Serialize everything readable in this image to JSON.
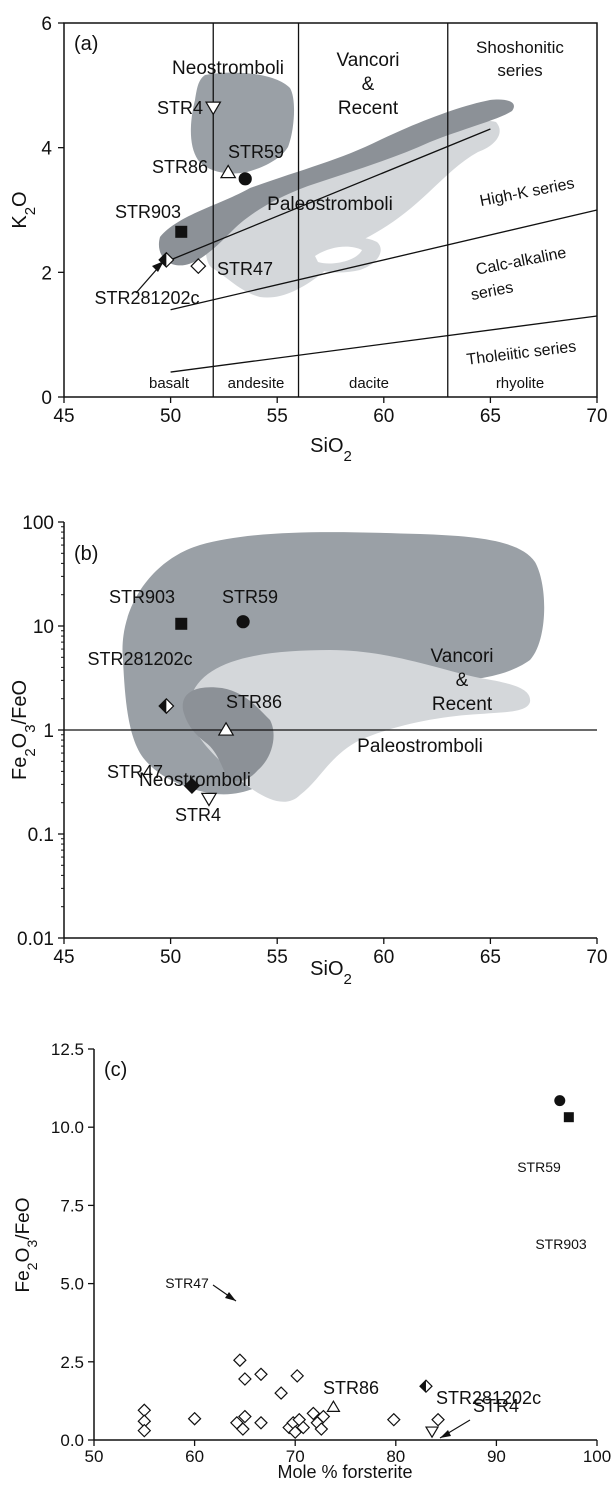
{
  "chart_data": [
    {
      "panel": "(a)",
      "type": "scatter",
      "xlabel": "SiO2",
      "ylabel": "K2O",
      "xlim": [
        45,
        70
      ],
      "ylim": [
        0,
        6
      ],
      "x_ticks": [
        45,
        50,
        55,
        60,
        65,
        70
      ],
      "y_ticks": [
        0,
        2,
        4,
        6
      ],
      "x_tick_labels": [
        "45",
        "50",
        "55",
        "60",
        "65",
        "70"
      ],
      "y_tick_labels": [
        "0",
        "2",
        "4",
        "6"
      ],
      "points": [
        {
          "label": "STR4",
          "x": 52.0,
          "y": 4.65,
          "marker": "triangle-down-open"
        },
        {
          "label": "STR86",
          "x": 52.7,
          "y": 3.6,
          "marker": "triangle-up-open"
        },
        {
          "label": "STR59",
          "x": 53.5,
          "y": 3.5,
          "marker": "circle-filled"
        },
        {
          "label": "STR903",
          "x": 50.5,
          "y": 2.65,
          "marker": "square-filled"
        },
        {
          "label": "STR281202c",
          "x": 49.8,
          "y": 2.2,
          "marker": "diamond-half"
        },
        {
          "label": "STR47",
          "x": 51.3,
          "y": 2.1,
          "marker": "diamond-open"
        }
      ],
      "fields": [
        {
          "name": "Neostromboli",
          "color": "#9aa0a6"
        },
        {
          "name": "Vancori & Recent",
          "color": "#8c9197"
        },
        {
          "name": "Paleostromboli",
          "color": "#d4d7da"
        }
      ],
      "field_labels": [
        "Neostromboli",
        "Vancori",
        "&",
        "Recent",
        "Paleostromboli"
      ],
      "series_labels": [
        "Shoshonitic",
        "series",
        "High-K series",
        "Calc-alkaline",
        "series",
        "Tholeiitic series"
      ],
      "rock_labels": [
        "basalt",
        "andesite",
        "dacite",
        "rhyolite"
      ],
      "boundary_x": [
        52,
        56,
        63
      ],
      "series_boundaries": [
        {
          "from": [
            50,
            0.4
          ],
          "to": [
            70,
            1.3
          ]
        },
        {
          "from": [
            50,
            1.4
          ],
          "to": [
            70,
            3.0
          ]
        },
        {
          "from": [
            50,
            2.2
          ],
          "to": [
            65,
            4.3
          ]
        }
      ]
    },
    {
      "panel": "(b)",
      "type": "scatter",
      "xlabel": "SiO2",
      "ylabel": "Fe2O3/FeO",
      "yscale": "log",
      "xlim": [
        45,
        70
      ],
      "ylim": [
        0.01,
        100
      ],
      "x_ticks": [
        45,
        50,
        55,
        60,
        65,
        70
      ],
      "y_ticks": [
        0.01,
        0.1,
        1,
        10,
        100
      ],
      "x_tick_labels": [
        "45",
        "50",
        "55",
        "60",
        "65",
        "70"
      ],
      "y_tick_labels": [
        "0.01",
        "0.1",
        "1",
        "10",
        "100"
      ],
      "reference_line_y": 1,
      "points": [
        {
          "label": "STR903",
          "x": 50.5,
          "y": 10.5,
          "marker": "square-filled"
        },
        {
          "label": "STR59",
          "x": 53.4,
          "y": 11,
          "marker": "circle-filled"
        },
        {
          "label": "STR281202c",
          "x": 49.8,
          "y": 1.7,
          "marker": "diamond-half"
        },
        {
          "label": "STR86",
          "x": 52.6,
          "y": 1.0,
          "marker": "triangle-up-open"
        },
        {
          "label": "STR47",
          "x": 51.0,
          "y": 0.29,
          "marker": "diamond-filled"
        },
        {
          "label": "STR4",
          "x": 51.8,
          "y": 0.22,
          "marker": "triangle-down-open"
        }
      ],
      "field_labels": [
        "Vancori",
        "&",
        "Recent",
        "Paleostromboli",
        "Neostromboli"
      ]
    },
    {
      "panel": "(c)",
      "type": "scatter",
      "xlabel": "Mole % forsterite",
      "ylabel": "Fe2O3/FeO",
      "xlim": [
        50,
        100
      ],
      "ylim": [
        0,
        12.5
      ],
      "x_ticks": [
        50,
        60,
        70,
        80,
        90,
        100
      ],
      "y_ticks": [
        0,
        2.5,
        5.0,
        7.5,
        10.0,
        12.5
      ],
      "x_tick_labels": [
        "50",
        "60",
        "70",
        "80",
        "90",
        "100"
      ],
      "y_tick_labels": [
        "0.0",
        "2.5",
        "5.0",
        "7.5",
        "10.0",
        "12.5"
      ],
      "labeled_points": [
        {
          "label": "STR59",
          "x": 96.3,
          "y": 10.85,
          "marker": "circle-filled"
        },
        {
          "label": "STR903",
          "x": 97.2,
          "y": 10.32,
          "marker": "square-filled"
        },
        {
          "label": "STR47",
          "x": 64.5,
          "y": 2.55,
          "marker": "diamond-open"
        },
        {
          "label": "STR86",
          "x": 73.8,
          "y": 1.05,
          "marker": "triangle-up-open"
        },
        {
          "label": "STR281202c",
          "x": 83.0,
          "y": 1.72,
          "marker": "diamond-half"
        },
        {
          "label": "STR4",
          "x": 83.6,
          "y": 0.28,
          "marker": "triangle-down-open"
        }
      ],
      "other_points": [
        [
          55,
          0.95
        ],
        [
          55,
          0.6
        ],
        [
          55,
          0.3
        ],
        [
          60,
          0.68
        ],
        [
          64.2,
          0.55
        ],
        [
          64.8,
          0.35
        ],
        [
          65.0,
          0.75
        ],
        [
          65.0,
          1.95
        ],
        [
          66.6,
          0.55
        ],
        [
          66.6,
          2.1
        ],
        [
          68.6,
          1.5
        ],
        [
          69.4,
          0.4
        ],
        [
          69.8,
          0.55
        ],
        [
          70.0,
          0.25
        ],
        [
          70.4,
          0.65
        ],
        [
          70.2,
          2.05
        ],
        [
          70.8,
          0.4
        ],
        [
          71.8,
          0.85
        ],
        [
          72.2,
          0.55
        ],
        [
          72.6,
          0.35
        ],
        [
          72.8,
          0.75
        ],
        [
          79.8,
          0.65
        ],
        [
          84.2,
          0.65
        ]
      ]
    }
  ]
}
